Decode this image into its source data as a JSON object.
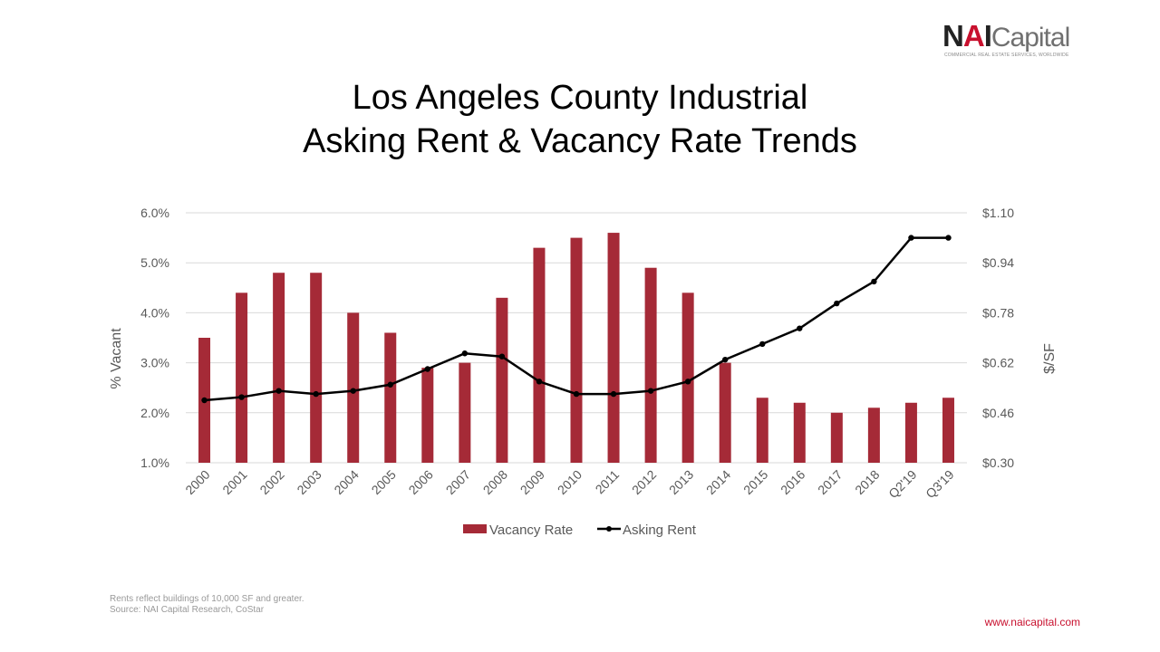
{
  "logo": {
    "mark_n": "N",
    "mark_a": "A",
    "mark_i": "I",
    "wordmark": "Capital",
    "tagline": "COMMERCIAL REAL ESTATE SERVICES, WORLDWIDE"
  },
  "footer": {
    "note1": "Rents reflect buildings of 10,000 SF and greater.",
    "note2": "Source: NAI Capital Research, CoStar",
    "website": "www.naicapital.com"
  },
  "colors": {
    "bar": "#a52a37",
    "line": "#000000",
    "grid": "#d9d9d9"
  },
  "chart_data": {
    "type": "bar",
    "title": "Los Angeles County Industrial",
    "subtitle": "Asking Rent & Vacancy Rate Trends",
    "categories": [
      "2000",
      "2001",
      "2002",
      "2003",
      "2004",
      "2005",
      "2006",
      "2007",
      "2008",
      "2009",
      "2010",
      "2011",
      "2012",
      "2013",
      "2014",
      "2015",
      "2016",
      "2017",
      "2018",
      "Q2'19",
      "Q3'19"
    ],
    "series": [
      {
        "name": "Vacancy Rate",
        "type": "bar",
        "axis": "left",
        "values": [
          3.5,
          4.4,
          4.8,
          4.8,
          4.0,
          3.6,
          2.9,
          3.0,
          4.3,
          5.3,
          5.5,
          5.6,
          4.9,
          4.4,
          3.0,
          2.3,
          2.2,
          2.0,
          2.1,
          2.2,
          2.3
        ]
      },
      {
        "name": "Asking Rent",
        "type": "line",
        "axis": "right",
        "values": [
          0.5,
          0.51,
          0.53,
          0.52,
          0.53,
          0.55,
          0.6,
          0.65,
          0.64,
          0.56,
          0.52,
          0.52,
          0.53,
          0.56,
          0.63,
          0.68,
          0.73,
          0.81,
          0.88,
          1.02,
          1.02
        ]
      }
    ],
    "ylabel": "% Vacant",
    "y2label": "$/SF",
    "ylim": [
      1.0,
      6.0
    ],
    "y2lim": [
      0.3,
      1.1
    ],
    "yticks": [
      "6.0%",
      "5.0%",
      "4.0%",
      "3.0%",
      "2.0%",
      "1.0%"
    ],
    "y2ticks": [
      "$1.10",
      "$0.94",
      "$0.78",
      "$0.62",
      "$0.46",
      "$0.30"
    ],
    "grid": true,
    "legend": "bottom"
  }
}
